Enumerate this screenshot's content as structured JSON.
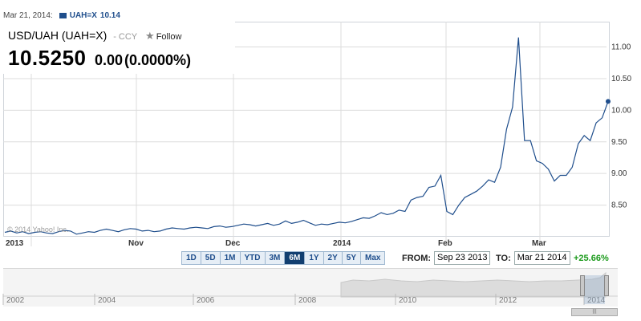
{
  "hover": {
    "date": "Mar 21, 2014:",
    "series": "UAH=X",
    "value": "10.14"
  },
  "quote": {
    "name": "USD/UAH (UAH=X)",
    "exchange": "- CCY",
    "follow_label": "Follow",
    "price": "10.5250",
    "change": "0.00",
    "change_pct": "(0.0000%)"
  },
  "watermark": "© 2014 Yahoo! Inc.",
  "ranges": [
    "1D",
    "5D",
    "1M",
    "YTD",
    "3M",
    "6M",
    "1Y",
    "2Y",
    "5Y",
    "Max"
  ],
  "active_range": "6M",
  "from_label": "FROM:",
  "from_value": "Sep 23 2013",
  "to_label": "TO:",
  "to_value": "Mar 21 2014",
  "period_change": "+25.66%",
  "navigator_years": [
    "2002",
    "2004",
    "2006",
    "2008",
    "2010",
    "2012",
    "2014"
  ],
  "colors": {
    "line": "#1f4e8c",
    "grid": "#dcdcdc",
    "gain": "#1a9a1a",
    "active_tab": "#123f70"
  },
  "chart_data": {
    "type": "line",
    "x_labels": [
      "2013",
      "Nov",
      "Dec",
      "2014",
      "Feb",
      "Mar"
    ],
    "y_ticks": [
      "8.50",
      "9.00",
      "9.50",
      "10.00",
      "10.50",
      "11.00"
    ],
    "ylim": [
      8.0,
      11.4
    ],
    "grid": true,
    "series": [
      {
        "values": [
          8.07,
          8.09,
          8.06,
          8.08,
          8.05,
          8.07,
          8.08,
          8.06,
          8.05,
          8.08,
          8.1,
          8.09,
          8.04,
          8.06,
          8.08,
          8.07,
          8.1,
          8.12,
          8.1,
          8.08,
          8.11,
          8.13,
          8.12,
          8.09,
          8.1,
          8.08,
          8.09,
          8.12,
          8.14,
          8.13,
          8.12,
          8.14,
          8.15,
          8.14,
          8.13,
          8.16,
          8.17,
          8.15,
          8.16,
          8.18,
          8.2,
          8.19,
          8.17,
          8.19,
          8.21,
          8.18,
          8.2,
          8.25,
          8.21,
          8.23,
          8.26,
          8.22,
          8.18,
          8.2,
          8.19,
          8.21,
          8.23,
          8.22,
          8.24,
          8.27,
          8.3,
          8.29,
          8.33,
          8.38,
          8.35,
          8.37,
          8.42,
          8.4,
          8.58,
          8.62,
          8.64,
          8.78,
          8.8,
          8.97,
          8.4,
          8.35,
          8.5,
          8.62,
          8.67,
          8.72,
          8.8,
          8.9,
          8.86,
          9.1,
          9.7,
          10.05,
          11.15,
          9.52,
          9.52,
          9.2,
          9.16,
          9.07,
          8.88,
          8.97,
          8.97,
          9.1,
          9.47,
          9.6,
          9.52,
          9.8,
          9.88,
          10.14
        ]
      }
    ]
  }
}
